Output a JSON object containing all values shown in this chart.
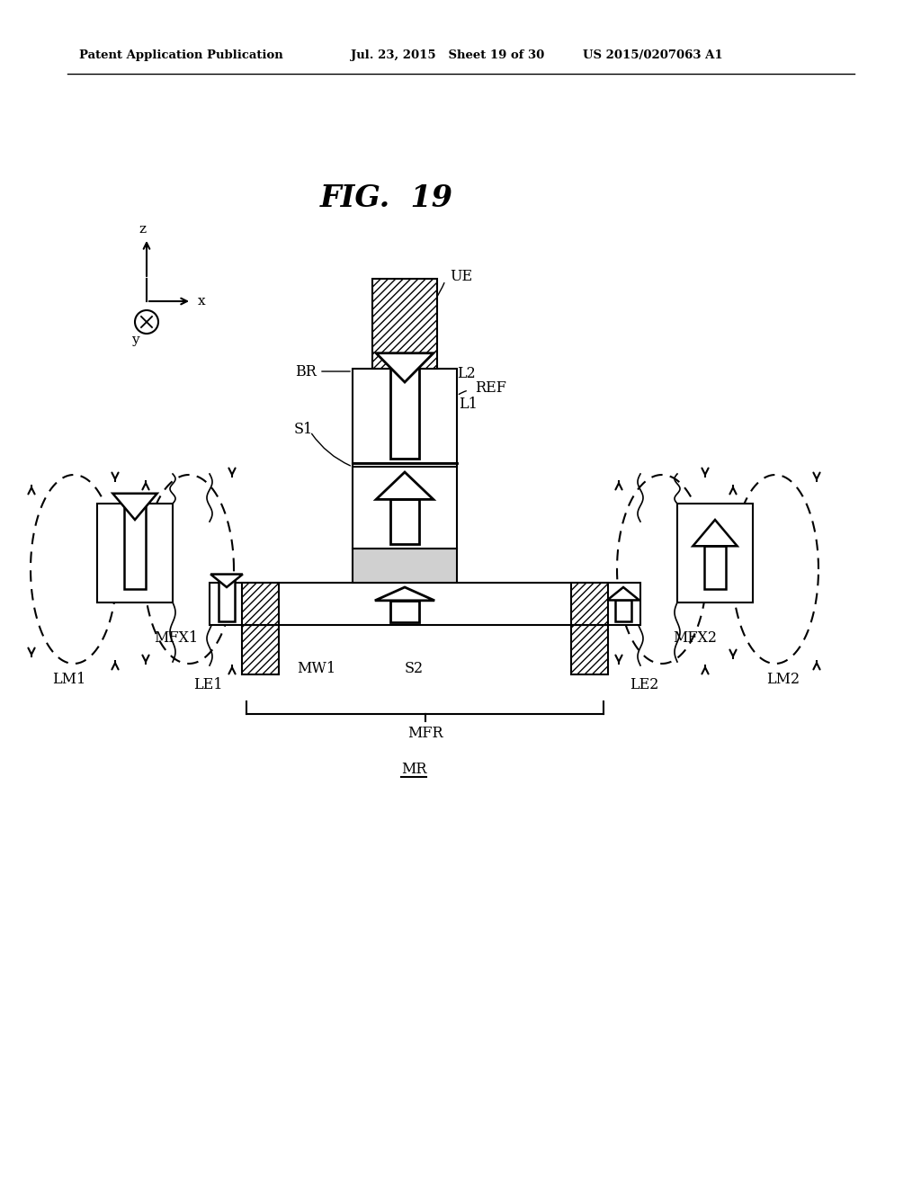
{
  "title": "FIG.  19",
  "header_left": "Patent Application Publication",
  "header_mid": "Jul. 23, 2015   Sheet 19 of 30",
  "header_right": "US 2015/0207063 A1",
  "bg_color": "#ffffff",
  "line_color": "#000000"
}
